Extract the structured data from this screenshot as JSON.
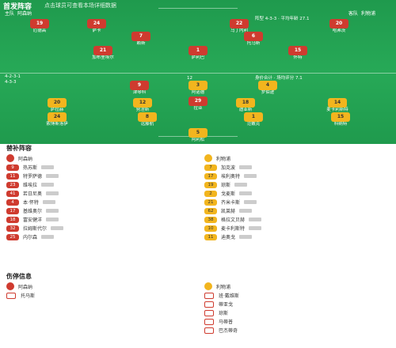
{
  "pitch": {
    "title": "首发阵容",
    "note": "点击球员可查看本场详细数据",
    "home": {
      "label": "主队",
      "name": "阿森纳"
    },
    "away": {
      "label": "客队",
      "name": "利物浦"
    },
    "home_formation": "4-2-3-1",
    "away_formation": "4-3-3",
    "away_note": "阵型 4-3-3 · 平均年龄 27.1",
    "legend_note": "身价合计 · 场均评分 7.1",
    "center": "12",
    "home_players": [
      {
        "num": "19",
        "name": "厄德高"
      },
      {
        "num": "24",
        "name": "萨卡"
      },
      {
        "num": "22",
        "name": "马丁内利"
      },
      {
        "num": "20",
        "name": "哈弗茨"
      },
      {
        "num": "7",
        "name": "赖斯"
      },
      {
        "num": "6",
        "name": "托马斯"
      },
      {
        "num": "1",
        "name": "萨利巴"
      },
      {
        "num": "21",
        "name": "加布里埃尔"
      },
      {
        "num": "15",
        "name": "怀特"
      },
      {
        "num": "9",
        "name": "津琴科"
      },
      {
        "num": "29",
        "name": "拉亚"
      }
    ],
    "away_players": [
      {
        "num": "20",
        "name": "萨拉赫"
      },
      {
        "num": "12",
        "name": "努涅斯"
      },
      {
        "num": "18",
        "name": "迪亚斯"
      },
      {
        "num": "14",
        "name": "麦卡利斯特"
      },
      {
        "num": "24",
        "name": "索博斯洛伊"
      },
      {
        "num": "8",
        "name": "远藤航"
      },
      {
        "num": "1",
        "name": "范戴克"
      },
      {
        "num": "15",
        "name": "科纳特"
      },
      {
        "num": "3",
        "name": "阿诺德"
      },
      {
        "num": "4",
        "name": "罗伯逊"
      },
      {
        "num": "5",
        "name": "阿利松"
      }
    ]
  },
  "subs": {
    "title": "替补阵容",
    "home_team": "阿森纳",
    "away_team": "利物浦",
    "home": [
      {
        "num": "9",
        "name": "热苏斯",
        "pos": "前锋"
      },
      {
        "num": "11",
        "name": "特罗萨德",
        "pos": "前锋"
      },
      {
        "num": "23",
        "name": "维埃拉",
        "pos": "中场"
      },
      {
        "num": "41",
        "name": "若日尼奥",
        "pos": "中场"
      },
      {
        "num": "4",
        "name": "本·怀特",
        "pos": "后卫"
      },
      {
        "num": "17",
        "name": "基维奥尔",
        "pos": "后卫"
      },
      {
        "num": "18",
        "name": "富安健洋",
        "pos": "后卫"
      },
      {
        "num": "32",
        "name": "拉姆斯代尔",
        "pos": "门将"
      },
      {
        "num": "25",
        "name": "内尔森",
        "pos": "前锋"
      }
    ],
    "away": [
      {
        "num": "7",
        "name": "加克波",
        "pos": "前锋"
      },
      {
        "num": "17",
        "name": "埃利奥特",
        "pos": "中场"
      },
      {
        "num": "19",
        "name": "琼斯",
        "pos": "中场"
      },
      {
        "num": "2",
        "name": "戈麦斯",
        "pos": "后卫"
      },
      {
        "num": "21",
        "name": "齐米卡斯",
        "pos": "后卫"
      },
      {
        "num": "62",
        "name": "凯莱赫",
        "pos": "门将"
      },
      {
        "num": "38",
        "name": "格拉文贝赫",
        "pos": "中场"
      },
      {
        "num": "10",
        "name": "麦卡利斯特",
        "pos": "中场"
      },
      {
        "num": "11",
        "name": "迪奥戈",
        "pos": "前锋"
      }
    ]
  },
  "injuries": {
    "title": "伤停信息",
    "home_team": "阿森纳",
    "away_team": "利物浦",
    "home": [
      "托马斯"
    ],
    "away": [
      "班·戴维斯",
      "蒂亚戈",
      "琼斯",
      "马蒂普",
      "巴杰蒂奇"
    ]
  },
  "colors": {
    "home": "#cf3b2f",
    "away": "#f2b51e",
    "pitch": "#1f9a4d"
  }
}
